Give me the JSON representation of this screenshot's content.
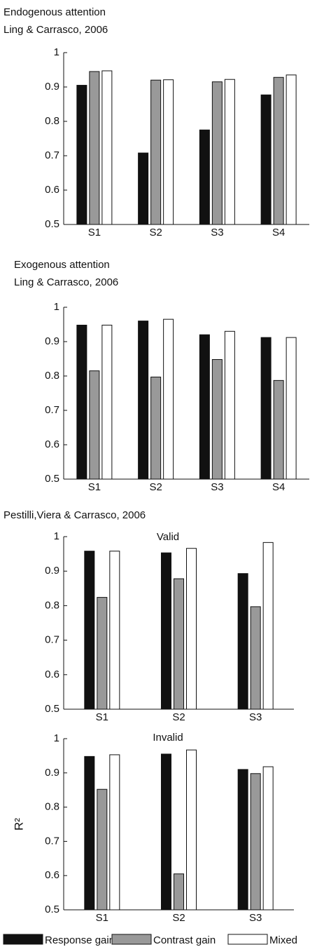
{
  "chart_data": [
    {
      "type": "bar",
      "title": "Endogenous attention",
      "subtitle": "Ling & Carrasco, 2006",
      "categories": [
        "S1",
        "S2",
        "S3",
        "S4"
      ],
      "series": [
        {
          "color": "#111111",
          "values": [
            0.905,
            0.708,
            0.775,
            0.877
          ]
        },
        {
          "color": "#999999",
          "values": [
            0.945,
            0.92,
            0.915,
            0.928
          ]
        },
        {
          "color": "#ffffff",
          "values": [
            0.947,
            0.921,
            0.922,
            0.935
          ]
        }
      ],
      "ylim": [
        0.5,
        1
      ],
      "yticks": [
        0.5,
        0.6,
        0.7,
        0.8,
        0.9,
        1
      ]
    },
    {
      "type": "bar",
      "title": "Exogenous attention",
      "subtitle": "Ling & Carrasco, 2006",
      "categories": [
        "S1",
        "S2",
        "S3",
        "S4"
      ],
      "series": [
        {
          "color": "#111111",
          "values": [
            0.948,
            0.96,
            0.92,
            0.912
          ]
        },
        {
          "color": "#999999",
          "values": [
            0.815,
            0.797,
            0.848,
            0.787
          ]
        },
        {
          "color": "#ffffff",
          "values": [
            0.948,
            0.965,
            0.93,
            0.912
          ]
        }
      ],
      "ylim": [
        0.5,
        1
      ],
      "yticks": [
        0.5,
        0.6,
        0.7,
        0.8,
        0.9,
        1
      ]
    },
    {
      "type": "bar",
      "title": "Pestilli,Viera & Carrasco, 2006",
      "subtitle": "Valid",
      "categories": [
        "S1",
        "S2",
        "S3"
      ],
      "series": [
        {
          "color": "#111111",
          "values": [
            0.958,
            0.953,
            0.893
          ]
        },
        {
          "color": "#999999",
          "values": [
            0.824,
            0.878,
            0.797
          ]
        },
        {
          "color": "#ffffff",
          "values": [
            0.958,
            0.966,
            0.983
          ]
        }
      ],
      "ylim": [
        0.5,
        1
      ],
      "yticks": [
        0.5,
        0.6,
        0.7,
        0.8,
        0.9,
        1
      ]
    },
    {
      "type": "bar",
      "subtitle": "Invalid",
      "y_label": "R²",
      "categories": [
        "S1",
        "S2",
        "S3"
      ],
      "series": [
        {
          "name": "Response gain",
          "color": "#111111",
          "values": [
            0.948,
            0.955,
            0.91
          ]
        },
        {
          "name": "Contrast gain",
          "color": "#999999",
          "values": [
            0.852,
            0.605,
            0.898
          ]
        },
        {
          "name": "Mixed",
          "color": "#ffffff",
          "values": [
            0.953,
            0.967,
            0.918
          ]
        }
      ],
      "ylim": [
        0.5,
        1
      ],
      "yticks": [
        0.5,
        0.6,
        0.7,
        0.8,
        0.9,
        1
      ]
    }
  ]
}
